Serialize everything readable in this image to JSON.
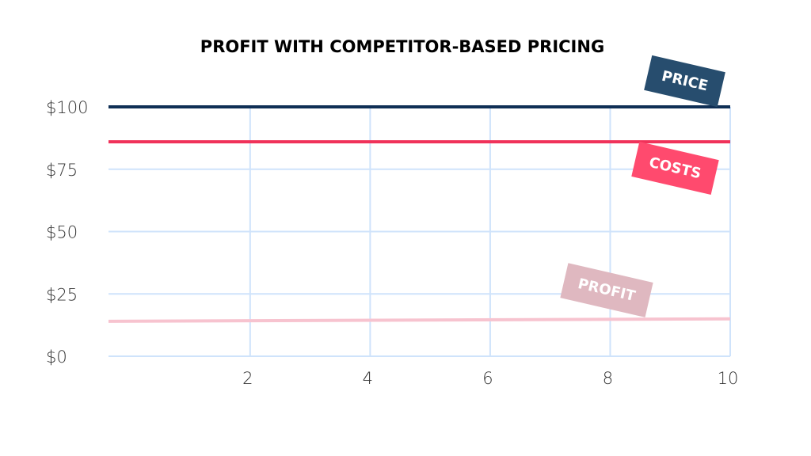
{
  "chart_data": {
    "type": "line",
    "title": "PROFIT WITH COMPETITOR-BASED PRICING",
    "xlabel": "",
    "ylabel": "",
    "x": [
      0,
      10
    ],
    "xlim": [
      -0.36,
      10
    ],
    "ylim": [
      0,
      100
    ],
    "xticks": [
      2,
      4,
      6,
      8,
      10
    ],
    "xtick_labels": [
      "2",
      "4",
      "6",
      "8",
      "10"
    ],
    "yticks": [
      0,
      25,
      50,
      75,
      100
    ],
    "ytick_labels": [
      "$0",
      "$25",
      "$50",
      "$75",
      "$100"
    ],
    "grid": true,
    "series": [
      {
        "name": "PRICE",
        "values": [
          100,
          100
        ],
        "color": "#0f2f55"
      },
      {
        "name": "COSTS",
        "values": [
          86,
          86
        ],
        "color": "#f0325a"
      },
      {
        "name": "PROFIT",
        "values": [
          14,
          15
        ],
        "color": "#f7c3cf"
      }
    ],
    "label_colors": {
      "PRICE": "#274d6e",
      "COSTS": "#ff4a6e",
      "PROFIT": "#dfb8c0"
    },
    "grid_color": "#cfe3fb"
  }
}
